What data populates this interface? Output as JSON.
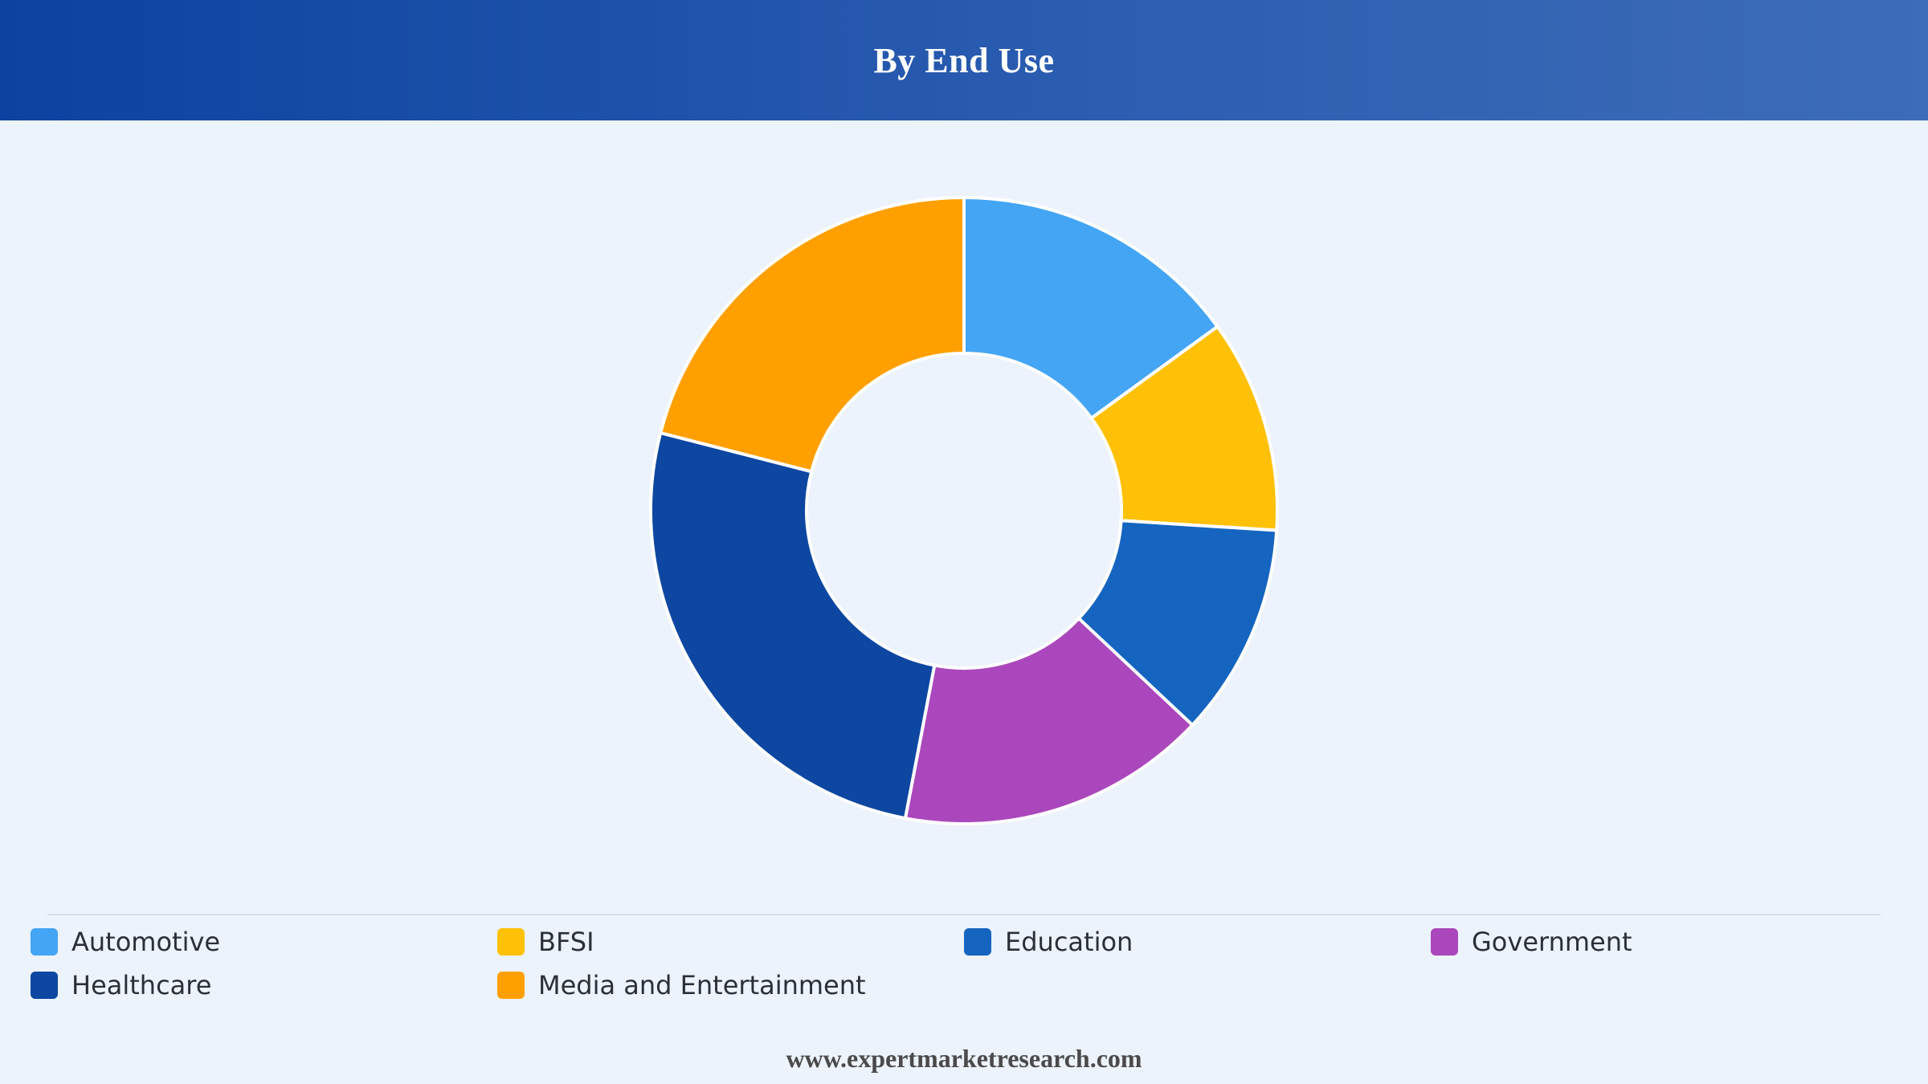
{
  "header": {
    "title": "By End Use"
  },
  "chart_data": {
    "type": "pie",
    "variant": "donut",
    "title": "By End Use",
    "categories": [
      "Automotive",
      "BFSI",
      "Education",
      "Government",
      "Healthcare",
      "Media and Entertainment"
    ],
    "values": [
      15,
      11,
      11,
      16,
      26,
      21
    ],
    "unit": "%",
    "colors": [
      "#44a5f5",
      "#ffc107",
      "#1565c0",
      "#ab47bc",
      "#0d47a1",
      "#ffa000"
    ],
    "start_angle_deg": 0,
    "direction": "clockwise",
    "legend_position": "bottom",
    "slice_order": [
      "Automotive",
      "BFSI",
      "Education",
      "Government",
      "Healthcare",
      "Media and Entertainment"
    ]
  },
  "legend": {
    "items": [
      {
        "label": "Automotive",
        "color": "#44a5f5"
      },
      {
        "label": "BFSI",
        "color": "#ffc107"
      },
      {
        "label": "Education",
        "color": "#1565c0"
      },
      {
        "label": "Government",
        "color": "#ab47bc"
      },
      {
        "label": "Healthcare",
        "color": "#0d47a1"
      },
      {
        "label": "Media and Entertainment",
        "color": "#ffa000"
      }
    ]
  },
  "footer": {
    "source": "www.expertmarketresearch.com"
  }
}
